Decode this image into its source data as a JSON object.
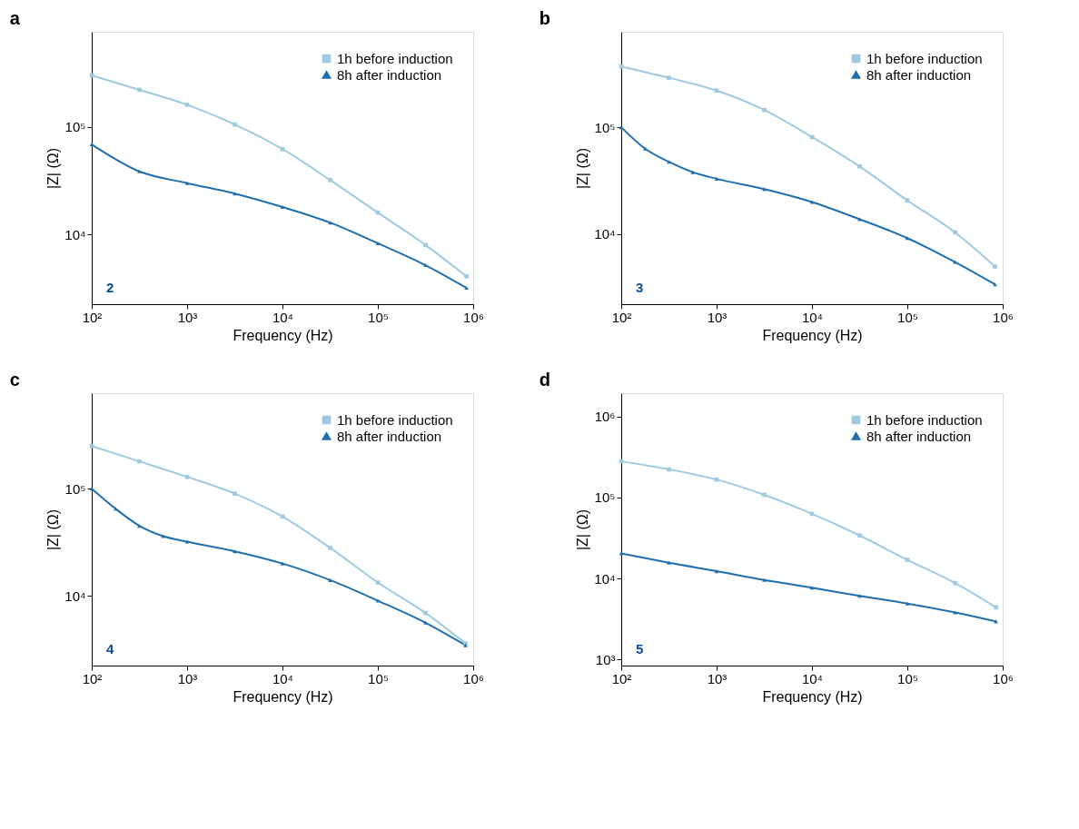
{
  "chart_data": [
    {
      "type": "line",
      "title": "a",
      "xlabel": "Frequency (Hz)",
      "ylabel": "|Z| (Ω)",
      "log": "xy",
      "grid": false,
      "legend": "top right",
      "line_style": "solid",
      "annotations": [
        "2"
      ],
      "xlim": [
        100,
        1000000
      ],
      "xticks": [
        {
          "value": 100,
          "label": "10²"
        },
        {
          "value": 1000,
          "label": "10³"
        },
        {
          "value": 10000,
          "label": "10⁴"
        },
        {
          "value": 100000,
          "label": "10⁵"
        },
        {
          "value": 1000000,
          "label": "10⁶"
        }
      ],
      "ylim": [
        2260,
        760000
      ],
      "yticks": [
        {
          "value": 10000,
          "label": "10⁴"
        },
        {
          "value": 100000,
          "label": "10⁵"
        }
      ],
      "series": [
        {
          "name": "1h before induction",
          "color": "#9ecae1",
          "marker": "square",
          "x": [
            100,
            316,
            1000,
            3162,
            10000,
            31623,
            100000,
            316228,
            850000
          ],
          "values": [
            300000,
            220000,
            160000,
            105000,
            62000,
            32000,
            16000,
            8000,
            4100
          ]
        },
        {
          "name": "8h after induction",
          "color": "#1f6fb0",
          "marker": "triangle",
          "x": [
            100,
            316,
            1000,
            3162,
            10000,
            31623,
            100000,
            316228,
            850000
          ],
          "values": [
            68500,
            38500,
            30000,
            24000,
            18000,
            12900,
            8300,
            5200,
            3200
          ]
        }
      ]
    },
    {
      "type": "line",
      "title": "b",
      "xlabel": "Frequency (Hz)",
      "ylabel": "|Z| (Ω)",
      "log": "xy",
      "grid": false,
      "legend": "top right",
      "line_style": "solid",
      "annotations": [
        "3"
      ],
      "xlim": [
        100,
        1000000
      ],
      "xticks": [
        {
          "value": 100,
          "label": "10²"
        },
        {
          "value": 1000,
          "label": "10³"
        },
        {
          "value": 10000,
          "label": "10⁴"
        },
        {
          "value": 100000,
          "label": "10⁵"
        },
        {
          "value": 1000000,
          "label": "10⁶"
        }
      ],
      "ylim": [
        2220,
        780000
      ],
      "yticks": [
        {
          "value": 10000,
          "label": "10⁴"
        },
        {
          "value": 100000,
          "label": "10⁵"
        }
      ],
      "series": [
        {
          "name": "1h before induction",
          "color": "#9ecae1",
          "marker": "square",
          "x": [
            100,
            316,
            1000,
            3162,
            10000,
            31623,
            100000,
            316228,
            830000
          ],
          "values": [
            370000,
            290000,
            220000,
            145000,
            81000,
            43000,
            20700,
            10400,
            5000
          ]
        },
        {
          "name": "8h after induction",
          "color": "#1f6fb0",
          "marker": "triangle",
          "x": [
            100,
            178,
            316,
            562,
            1000,
            3162,
            10000,
            31623,
            100000,
            316228,
            830000
          ],
          "values": [
            100000,
            63000,
            47500,
            38000,
            33000,
            26400,
            20000,
            13800,
            9200,
            5500,
            3400
          ]
        }
      ]
    },
    {
      "type": "line",
      "title": "c",
      "xlabel": "Frequency (Hz)",
      "ylabel": "|Z| (Ω)",
      "log": "xy",
      "grid": false,
      "legend": "top right",
      "line_style": "solid",
      "annotations": [
        "4"
      ],
      "xlim": [
        100,
        1000000
      ],
      "xticks": [
        {
          "value": 100,
          "label": "10²"
        },
        {
          "value": 1000,
          "label": "10³"
        },
        {
          "value": 10000,
          "label": "10⁴"
        },
        {
          "value": 100000,
          "label": "10⁵"
        },
        {
          "value": 1000000,
          "label": "10⁶"
        }
      ],
      "ylim": [
        2230,
        780000
      ],
      "yticks": [
        {
          "value": 10000,
          "label": "10⁴"
        },
        {
          "value": 100000,
          "label": "10⁵"
        }
      ],
      "series": [
        {
          "name": "1h before induction",
          "color": "#9ecae1",
          "marker": "square",
          "x": [
            100,
            316,
            1000,
            3162,
            10000,
            31623,
            100000,
            316228,
            830000
          ],
          "values": [
            250000,
            180000,
            129000,
            90000,
            55000,
            28000,
            13300,
            6900,
            3600
          ]
        },
        {
          "name": "8h after induction",
          "color": "#1f6fb0",
          "marker": "triangle",
          "x": [
            100,
            178,
            316,
            562,
            1000,
            3162,
            10000,
            31623,
            100000,
            316228,
            830000
          ],
          "values": [
            100000,
            65000,
            45000,
            36000,
            32000,
            26000,
            20000,
            14000,
            9000,
            5600,
            3450
          ]
        }
      ]
    },
    {
      "type": "line",
      "title": "d",
      "xlabel": "Frequency (Hz)",
      "ylabel": "|Z| (Ω)",
      "log": "xy",
      "grid": false,
      "legend": "top right",
      "line_style": "solid",
      "annotations": [
        "5"
      ],
      "xlim": [
        100,
        1000000
      ],
      "xticks": [
        {
          "value": 100,
          "label": "10²"
        },
        {
          "value": 1000,
          "label": "10³"
        },
        {
          "value": 10000,
          "label": "10⁴"
        },
        {
          "value": 100000,
          "label": "10⁵"
        },
        {
          "value": 1000000,
          "label": "10⁶"
        }
      ],
      "ylim": [
        840,
        1950000
      ],
      "yticks": [
        {
          "value": 1000,
          "label": "10³"
        },
        {
          "value": 10000,
          "label": "10⁴"
        },
        {
          "value": 100000,
          "label": "10⁵"
        },
        {
          "value": 1000000,
          "label": "10⁶"
        }
      ],
      "series": [
        {
          "name": "1h before induction",
          "color": "#9ecae1",
          "marker": "square",
          "x": [
            100,
            316,
            1000,
            3162,
            10000,
            31623,
            100000,
            316228,
            850000
          ],
          "values": [
            280000,
            223000,
            167000,
            108000,
            63000,
            34000,
            17000,
            8800,
            4400
          ]
        },
        {
          "name": "8h after induction",
          "color": "#1f6fb0",
          "marker": "triangle",
          "x": [
            100,
            316,
            1000,
            3162,
            10000,
            31623,
            100000,
            316228,
            850000
          ],
          "values": [
            20400,
            15700,
            12300,
            9600,
            7700,
            6100,
            4900,
            3800,
            2950
          ]
        }
      ]
    }
  ]
}
